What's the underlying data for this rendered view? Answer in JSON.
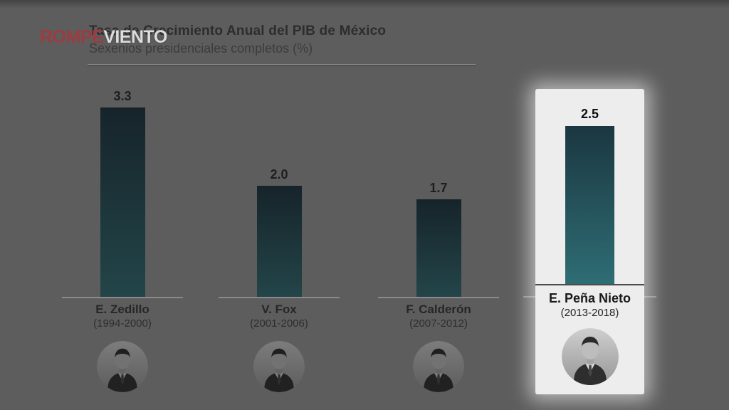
{
  "watermark": {
    "text_red": "ROMPE",
    "text_white": "VIENTO"
  },
  "chart_data": {
    "type": "bar",
    "title": "Tasa de Crecimiento Anual del PIB de México",
    "subtitle": "Sexenios presidenciales completos (%)",
    "categories": [
      "E. Zedillo",
      "V. Fox",
      "F. Calderón",
      "E. Peña Nieto"
    ],
    "terms": [
      "(1994-2000)",
      "(2001-2006)",
      "(2007-2012)",
      "(2013-2018)"
    ],
    "values": [
      3.3,
      2.0,
      1.7,
      2.5
    ],
    "value_labels": [
      "3.3",
      "2.0",
      "1.7",
      "2.5"
    ],
    "unit": "%",
    "highlighted_index": 3,
    "highlighted_category": "E. Peña Nieto",
    "ylim": [
      0,
      3.5
    ],
    "grid": false,
    "legend": false,
    "colors": {
      "bar_gradient_top": "#1b3741",
      "bar_gradient_bottom": "#2f6d74",
      "dimmed_bar_top": "#16242a",
      "dimmed_bar_bottom": "#234549",
      "highlight_panel": "#ededed",
      "background": "#5d5d5d",
      "logo_red": "#9e3b3f",
      "axis_line": "#8a8a8a"
    }
  }
}
